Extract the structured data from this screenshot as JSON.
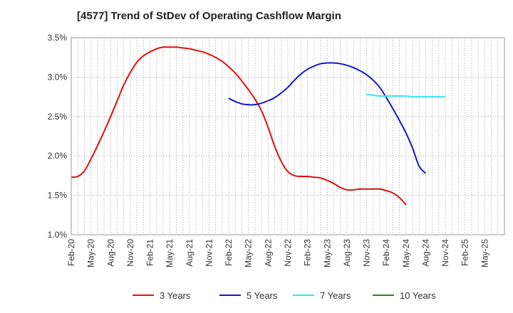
{
  "chart_data": {
    "type": "line",
    "title": "[4577]  Trend of StDev of Operating Cashflow Margin",
    "xlabel": "",
    "ylabel": "",
    "x_ticks": [
      "Feb-20",
      "May-20",
      "Aug-20",
      "Nov-20",
      "Feb-21",
      "May-21",
      "Aug-21",
      "Nov-21",
      "Feb-22",
      "May-22",
      "Aug-22",
      "Nov-22",
      "Feb-23",
      "May-23",
      "Aug-23",
      "Nov-23",
      "Feb-24",
      "May-24",
      "Aug-24",
      "Nov-24",
      "Feb-25",
      "May-25"
    ],
    "y_ticks": [
      "1.0%",
      "1.5%",
      "2.0%",
      "2.5%",
      "3.0%",
      "3.5%"
    ],
    "ylim": [
      1.0,
      3.5
    ],
    "y_unit": "%",
    "grid": true,
    "legend_position": "bottom",
    "series": [
      {
        "name": "3 Years",
        "color": "#dd1111",
        "points": [
          [
            "Feb-20",
            1.73
          ],
          [
            "Mar-20",
            1.74
          ],
          [
            "Apr-20",
            1.81
          ],
          [
            "May-20",
            1.96
          ],
          [
            "Jun-20",
            2.13
          ],
          [
            "Jul-20",
            2.31
          ],
          [
            "Aug-20",
            2.5
          ],
          [
            "Sep-20",
            2.7
          ],
          [
            "Oct-20",
            2.9
          ],
          [
            "Nov-20",
            3.06
          ],
          [
            "Dec-20",
            3.19
          ],
          [
            "Jan-21",
            3.27
          ],
          [
            "Feb-21",
            3.32
          ],
          [
            "Mar-21",
            3.36
          ],
          [
            "Apr-21",
            3.38
          ],
          [
            "May-21",
            3.38
          ],
          [
            "Jun-21",
            3.38
          ],
          [
            "Jul-21",
            3.37
          ],
          [
            "Aug-21",
            3.36
          ],
          [
            "Sep-21",
            3.34
          ],
          [
            "Oct-21",
            3.32
          ],
          [
            "Nov-21",
            3.29
          ],
          [
            "Dec-21",
            3.25
          ],
          [
            "Jan-22",
            3.2
          ],
          [
            "Feb-22",
            3.13
          ],
          [
            "Mar-22",
            3.05
          ],
          [
            "Apr-22",
            2.95
          ],
          [
            "May-22",
            2.84
          ],
          [
            "Jun-22",
            2.72
          ],
          [
            "Jul-22",
            2.57
          ],
          [
            "Aug-22",
            2.36
          ],
          [
            "Sep-22",
            2.12
          ],
          [
            "Oct-22",
            1.93
          ],
          [
            "Nov-22",
            1.8
          ],
          [
            "Dec-22",
            1.75
          ],
          [
            "Jan-23",
            1.74
          ],
          [
            "Feb-23",
            1.74
          ],
          [
            "Mar-23",
            1.73
          ],
          [
            "Apr-23",
            1.72
          ],
          [
            "May-23",
            1.69
          ],
          [
            "Jun-23",
            1.65
          ],
          [
            "Jul-23",
            1.6
          ],
          [
            "Aug-23",
            1.57
          ],
          [
            "Sep-23",
            1.57
          ],
          [
            "Oct-23",
            1.58
          ],
          [
            "Nov-23",
            1.58
          ],
          [
            "Dec-23",
            1.58
          ],
          [
            "Jan-24",
            1.58
          ],
          [
            "Feb-24",
            1.56
          ],
          [
            "Mar-24",
            1.53
          ],
          [
            "Apr-24",
            1.47
          ],
          [
            "May-24",
            1.38
          ]
        ]
      },
      {
        "name": "5 Years",
        "color": "#1515cc",
        "points": [
          [
            "Feb-22",
            2.73
          ],
          [
            "Mar-22",
            2.69
          ],
          [
            "Apr-22",
            2.66
          ],
          [
            "May-22",
            2.65
          ],
          [
            "Jun-22",
            2.65
          ],
          [
            "Jul-22",
            2.67
          ],
          [
            "Aug-22",
            2.7
          ],
          [
            "Sep-22",
            2.74
          ],
          [
            "Oct-22",
            2.8
          ],
          [
            "Nov-22",
            2.87
          ],
          [
            "Dec-22",
            2.96
          ],
          [
            "Jan-23",
            3.04
          ],
          [
            "Feb-23",
            3.1
          ],
          [
            "Mar-23",
            3.14
          ],
          [
            "Apr-23",
            3.17
          ],
          [
            "May-23",
            3.18
          ],
          [
            "Jun-23",
            3.18
          ],
          [
            "Jul-23",
            3.17
          ],
          [
            "Aug-23",
            3.15
          ],
          [
            "Sep-23",
            3.12
          ],
          [
            "Oct-23",
            3.08
          ],
          [
            "Nov-23",
            3.03
          ],
          [
            "Dec-23",
            2.96
          ],
          [
            "Jan-24",
            2.87
          ],
          [
            "Feb-24",
            2.74
          ],
          [
            "Mar-24",
            2.6
          ],
          [
            "Apr-24",
            2.45
          ],
          [
            "May-24",
            2.29
          ],
          [
            "Jun-24",
            2.1
          ],
          [
            "Jul-24",
            1.87
          ],
          [
            "Aug-24",
            1.78
          ]
        ]
      },
      {
        "name": "7 Years",
        "color": "#33e5ee",
        "points": [
          [
            "Nov-23",
            2.78
          ],
          [
            "Dec-23",
            2.77
          ],
          [
            "Jan-24",
            2.76
          ],
          [
            "Feb-24",
            2.76
          ],
          [
            "Mar-24",
            2.76
          ],
          [
            "Apr-24",
            2.76
          ],
          [
            "May-24",
            2.76
          ],
          [
            "Jun-24",
            2.75
          ],
          [
            "Jul-24",
            2.75
          ],
          [
            "Aug-24",
            2.75
          ],
          [
            "Sep-24",
            2.75
          ],
          [
            "Oct-24",
            2.75
          ],
          [
            "Nov-24",
            2.75
          ]
        ]
      },
      {
        "name": "10 Years",
        "color": "#228822",
        "points": []
      }
    ]
  }
}
